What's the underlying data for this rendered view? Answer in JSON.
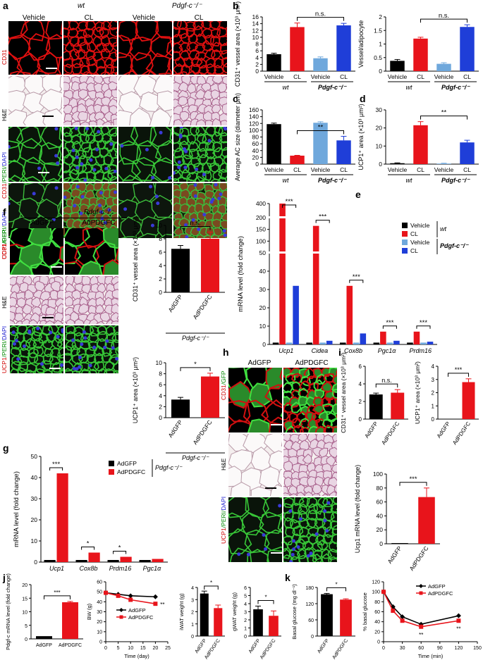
{
  "panels": {
    "a": {
      "label": "a",
      "groups": [
        "wt",
        "Pdgf-c⁻/⁻"
      ],
      "columns": [
        "Vehicle",
        "CL",
        "Vehicle",
        "CL"
      ],
      "rows": {
        "cd31": "CD31",
        "he": "H&E",
        "peri_ucp": [
          "CD31",
          "/PERI/",
          "DAPI"
        ],
        "ucp_peri": [
          "UCP1",
          "/PERI/",
          "DAPI"
        ]
      }
    },
    "b": {
      "label": "b"
    },
    "c": {
      "label": "c"
    },
    "d": {
      "label": "d"
    },
    "e": {
      "label": "e"
    },
    "f": {
      "label": "f",
      "group": "Pdgf-c⁻/⁻",
      "columns": [
        "AdGFP",
        "AdPDGFC"
      ],
      "rows": {
        "cd31": [
          "CD31",
          "/GFP"
        ],
        "he": "H&E",
        "ucp": [
          "UCP1",
          "/PERI/",
          "DAPI"
        ]
      }
    },
    "g": {
      "label": "g"
    },
    "h": {
      "label": "h",
      "columns": [
        "AdGFP",
        "AdPDGFC"
      ],
      "rows": {
        "cd31": [
          "CD31",
          "/GFP"
        ],
        "he": "H&E",
        "ucp": [
          "UCP1",
          "/PERI/",
          "DAPI"
        ]
      }
    },
    "i": {
      "label": "i"
    },
    "j": {
      "label": "j"
    },
    "k": {
      "label": "k"
    }
  },
  "chart_data": [
    {
      "id": "b1",
      "type": "bar",
      "ylabel": "CD31⁺ vessel area (×10³ μm²)",
      "categories": [
        "Vehicle",
        "CL",
        "Vehicle",
        "CL"
      ],
      "groups": [
        "wt",
        "Pdgf-c⁻/⁻"
      ],
      "values": [
        5,
        13,
        3.8,
        13.5
      ],
      "errors": [
        0.3,
        1.2,
        0.4,
        0.6
      ],
      "ylim": [
        0,
        16
      ],
      "yticks": [
        0,
        2,
        4,
        6,
        8,
        10,
        12,
        14,
        16
      ],
      "colors": [
        "#000000",
        "#e8141b",
        "#6fa8dc",
        "#1f3ed8"
      ],
      "annotation": "n.s."
    },
    {
      "id": "b2",
      "type": "bar",
      "ylabel": "Vessel/adipocyte",
      "categories": [
        "Vehicle",
        "CL",
        "Vehicle",
        "CL"
      ],
      "groups": [
        "wt",
        "Pdgf-c⁻/⁻"
      ],
      "values": [
        0.38,
        1.2,
        0.27,
        1.63
      ],
      "errors": [
        0.05,
        0.05,
        0.04,
        0.08
      ],
      "ylim": [
        0,
        2
      ],
      "yticks": [
        0,
        0.5,
        1.0,
        1.5,
        2.0
      ],
      "colors": [
        "#000000",
        "#e8141b",
        "#6fa8dc",
        "#1f3ed8"
      ],
      "annotation": "n.s."
    },
    {
      "id": "c",
      "type": "bar",
      "ylabel": "Average AC size (diameter μm)",
      "categories": [
        "Vehicle",
        "CL",
        "Vehicle",
        "CL"
      ],
      "groups": [
        "wt",
        "Pdgf-c⁻/⁻"
      ],
      "values": [
        118,
        25,
        122,
        70
      ],
      "errors": [
        3,
        1,
        3,
        12
      ],
      "ylim": [
        0,
        160
      ],
      "yticks": [
        0,
        20,
        40,
        60,
        80,
        100,
        120,
        140,
        160
      ],
      "colors": [
        "#000000",
        "#e8141b",
        "#6fa8dc",
        "#1f3ed8"
      ],
      "annotation": "**"
    },
    {
      "id": "d",
      "type": "bar",
      "ylabel": "UCP1⁺ area (×10³ μm²)",
      "categories": [
        "Vehicle",
        "CL",
        "Vehicle",
        "CL"
      ],
      "groups": [
        "wt",
        "Pdgf-c⁻/⁻"
      ],
      "values": [
        0.5,
        21.5,
        0.3,
        12
      ],
      "errors": [
        0.2,
        2,
        0.2,
        1.2
      ],
      "ylim": [
        0,
        30
      ],
      "yticks": [
        0,
        10,
        20,
        30
      ],
      "colors": [
        "#000000",
        "#e8141b",
        "#6fa8dc",
        "#1f3ed8"
      ],
      "annotation": "**"
    },
    {
      "id": "e",
      "type": "bar",
      "ylabel": "mRNA level (fold change)",
      "categories": [
        "Ucp1",
        "Cidea",
        "Cox8b",
        "Pgc1α",
        "Prdm16"
      ],
      "series": [
        {
          "name": "Vehicle",
          "group": "wt",
          "values": [
            1,
            1,
            1,
            1,
            1
          ],
          "color": "#000000"
        },
        {
          "name": "CL",
          "group": "wt",
          "values": [
            400,
            165,
            32,
            7,
            7
          ],
          "color": "#e8141b"
        },
        {
          "name": "Vehicle",
          "group": "Pdgf-c⁻/⁻",
          "values": [
            1,
            1,
            1,
            1,
            1
          ],
          "color": "#6fa8dc"
        },
        {
          "name": "CL",
          "group": "Pdgf-c⁻/⁻",
          "values": [
            32,
            2,
            6,
            2,
            1.5
          ],
          "color": "#1f3ed8"
        }
      ],
      "yticks": [
        0,
        10,
        20,
        30,
        40,
        50,
        100,
        150,
        200,
        400
      ],
      "legend_group_labels": [
        "wt",
        "Pdgf-c⁻/⁻"
      ],
      "annotations": [
        "***",
        "***",
        "***",
        "***",
        "***"
      ]
    },
    {
      "id": "f1",
      "type": "bar",
      "ylabel": "CD31⁺ vessel area (×10³ μm²)",
      "categories": [
        "AdGFP",
        "AdPDGFC"
      ],
      "values": [
        6.5,
        8
      ],
      "errors": [
        0.5,
        1
      ],
      "ylim": [
        0,
        10
      ],
      "yticks": [
        0,
        2,
        4,
        6,
        8,
        10
      ],
      "colors": [
        "#000000",
        "#e8141b"
      ],
      "annotation": "n.s.",
      "group": "Pdgf-c⁻/⁻"
    },
    {
      "id": "f2",
      "type": "bar",
      "ylabel": "UCP1⁺ area (×10³ μm²)",
      "categories": [
        "AdGFP",
        "AdPDGFC"
      ],
      "values": [
        3.3,
        7.5
      ],
      "errors": [
        0.4,
        0.6
      ],
      "ylim": [
        0,
        10
      ],
      "yticks": [
        0,
        2,
        4,
        6,
        8,
        10
      ],
      "colors": [
        "#000000",
        "#e8141b"
      ],
      "annotation": "*",
      "group": "Pdgf-c⁻/⁻"
    },
    {
      "id": "g",
      "type": "bar",
      "ylabel": "mRNA level (fold change)",
      "categories": [
        "Ucp1",
        "Cox8b",
        "Prdm16",
        "Pgc1α"
      ],
      "series": [
        {
          "name": "AdGFP",
          "values": [
            1,
            1,
            1,
            1
          ],
          "color": "#000000"
        },
        {
          "name": "AdPDGFC",
          "values": [
            42,
            4.5,
            2.5,
            1.5
          ],
          "color": "#e8141b"
        }
      ],
      "ylim": [
        0,
        50
      ],
      "yticks": [
        0,
        10,
        20,
        30,
        40,
        50
      ],
      "annotations": [
        "***",
        "*",
        "*",
        ""
      ],
      "group": "Pdgf-c⁻/⁻"
    },
    {
      "id": "i1",
      "type": "bar",
      "ylabel": "CD31⁺ vessel area (×10³ μm²)",
      "categories": [
        "AdGFP",
        "AdPDGFC"
      ],
      "values": [
        2.8,
        3.0
      ],
      "errors": [
        0.15,
        0.35
      ],
      "ylim": [
        0,
        6
      ],
      "yticks": [
        0,
        2,
        4,
        6
      ],
      "colors": [
        "#000000",
        "#e8141b"
      ],
      "annotation": "n.s."
    },
    {
      "id": "i2",
      "type": "bar",
      "ylabel": "UCP1⁺ area (×10³ μm²)",
      "categories": [
        "AdGFP",
        "AdPDGFC"
      ],
      "values": [
        0,
        2.8
      ],
      "errors": [
        0,
        0.25
      ],
      "ylim": [
        0,
        4
      ],
      "yticks": [
        0,
        1,
        2,
        3,
        4
      ],
      "colors": [
        "#000000",
        "#e8141b"
      ],
      "annotation": "***"
    },
    {
      "id": "i3",
      "type": "bar",
      "ylabel": "Ucp1 mRNA level (fold change)",
      "categories": [
        "AdGFP",
        "AdPDGFC"
      ],
      "values": [
        1,
        67
      ],
      "errors": [
        0,
        13
      ],
      "ylim": [
        0,
        100
      ],
      "yticks": [
        0,
        20,
        40,
        60,
        80,
        100
      ],
      "colors": [
        "#000000",
        "#e8141b"
      ],
      "annotation": "***"
    },
    {
      "id": "j1",
      "type": "bar",
      "ylabel": "Pdgf-c mRNA level (fold change)",
      "categories": [
        "AdGFP",
        "AdPDGFC"
      ],
      "values": [
        1,
        13.5
      ],
      "errors": [
        0,
        0.3
      ],
      "ylim": [
        0,
        20
      ],
      "yticks": [
        0,
        5,
        10,
        15,
        20
      ],
      "colors": [
        "#000000",
        "#e8141b"
      ],
      "annotation": "***"
    },
    {
      "id": "j2",
      "type": "line",
      "ylabel": "BW (g)",
      "xlabel": "Time (day)",
      "x": [
        0,
        5,
        10,
        20
      ],
      "series": [
        {
          "name": "AdGFP",
          "values": [
            49,
            47.5,
            46,
            45
          ],
          "color": "#000000",
          "marker": "diamond"
        },
        {
          "name": "AdPDGFC",
          "values": [
            49,
            46,
            42,
            38
          ],
          "color": "#e8141b",
          "marker": "square"
        }
      ],
      "xlim": [
        0,
        25
      ],
      "xticks": [
        0,
        5,
        10,
        15,
        20,
        25
      ],
      "ylim": [
        0,
        60
      ],
      "yticks": [
        0,
        10,
        20,
        30,
        40,
        50,
        60
      ],
      "annotation": "**"
    },
    {
      "id": "j3",
      "type": "bar",
      "ylabel": "iWAT weight (g)",
      "categories": [
        "AdGFP",
        "AdPDGFC"
      ],
      "values": [
        3.5,
        2.3
      ],
      "errors": [
        0.2,
        0.25
      ],
      "ylim": [
        0,
        4
      ],
      "yticks": [
        0,
        1,
        2,
        3,
        4
      ],
      "colors": [
        "#000000",
        "#e8141b"
      ],
      "annotation": "*"
    },
    {
      "id": "j4",
      "type": "bar",
      "ylabel": "gWAT weight (g)",
      "categories": [
        "AdGFP",
        "AdPDGFC"
      ],
      "values": [
        3.3,
        2.5
      ],
      "errors": [
        0.4,
        0.6
      ],
      "ylim": [
        0,
        6
      ],
      "yticks": [
        0,
        1,
        2,
        3,
        4,
        5,
        6
      ],
      "colors": [
        "#000000",
        "#e8141b"
      ],
      "annotation": "*"
    },
    {
      "id": "k1",
      "type": "bar",
      "ylabel": "Basal glucose (mg dl⁻¹)",
      "categories": [
        "AdGFP",
        "AdPDGFC"
      ],
      "values": [
        155,
        135
      ],
      "errors": [
        3,
        3
      ],
      "ylim": [
        0,
        180
      ],
      "yticks": [
        0,
        60,
        120,
        180
      ],
      "colors": [
        "#000000",
        "#e8141b"
      ],
      "annotation": "*"
    },
    {
      "id": "k2",
      "type": "line",
      "ylabel": "% basal glucose",
      "xlabel": "Time (min)",
      "x": [
        0,
        15,
        30,
        60,
        120
      ],
      "series": [
        {
          "name": "AdGFP",
          "values": [
            100,
            70,
            50,
            35,
            52
          ],
          "color": "#000000",
          "marker": "diamond"
        },
        {
          "name": "AdPDGFC",
          "values": [
            100,
            62,
            42,
            30,
            42
          ],
          "color": "#e8141b",
          "marker": "square"
        }
      ],
      "xlim": [
        0,
        150
      ],
      "xticks": [
        0,
        30,
        60,
        90,
        120,
        150
      ],
      "ylim": [
        0,
        120
      ],
      "yticks": [
        0,
        20,
        40,
        60,
        80,
        100,
        120
      ],
      "annotations": [
        "**",
        "**"
      ]
    }
  ]
}
